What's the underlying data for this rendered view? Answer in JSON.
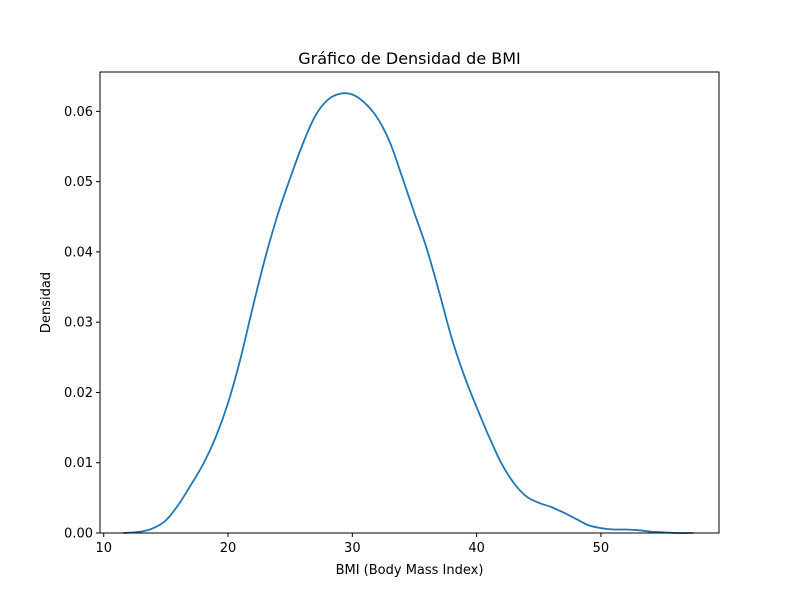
{
  "chart_data": {
    "type": "line",
    "title": "Gráfico de Densidad de BMI",
    "xlabel": "BMI (Body Mass Index)",
    "ylabel": "Densidad",
    "xlim": [
      9.7,
      59.5
    ],
    "ylim": [
      0,
      0.0656
    ],
    "x_ticks": [
      10,
      20,
      30,
      40,
      50
    ],
    "y_ticks": [
      0.0,
      0.01,
      0.02,
      0.03,
      0.04,
      0.05,
      0.06
    ],
    "y_tick_labels": [
      "0.00",
      "0.01",
      "0.02",
      "0.03",
      "0.04",
      "0.05",
      "0.06"
    ],
    "grid": false,
    "line_color": "#1f77b4",
    "series": [
      {
        "x": [
          11.6,
          13.0,
          14.0,
          15.0,
          16.0,
          17.0,
          18.0,
          19.0,
          20.0,
          21.0,
          22.0,
          23.0,
          24.0,
          25.0,
          26.0,
          27.0,
          28.0,
          29.0,
          30.0,
          31.0,
          32.0,
          33.0,
          34.0,
          35.0,
          36.0,
          37.0,
          38.0,
          39.0,
          40.0,
          41.0,
          42.0,
          43.0,
          44.0,
          45.0,
          46.0,
          47.0,
          48.0,
          49.0,
          50.0,
          51.0,
          52.0,
          53.0,
          54.0,
          55.0,
          56.0,
          57.4
        ],
        "y": [
          0.0,
          0.0002,
          0.0007,
          0.0018,
          0.004,
          0.0068,
          0.0098,
          0.0136,
          0.0185,
          0.0248,
          0.0322,
          0.0392,
          0.0453,
          0.0505,
          0.0553,
          0.0593,
          0.0616,
          0.0625,
          0.0624,
          0.0612,
          0.0591,
          0.0557,
          0.0507,
          0.0455,
          0.0404,
          0.0342,
          0.0277,
          0.0224,
          0.0179,
          0.0137,
          0.0099,
          0.0071,
          0.0052,
          0.0043,
          0.0037,
          0.0029,
          0.002,
          0.0011,
          0.0007,
          0.0005,
          0.0005,
          0.0004,
          0.0002,
          0.0001,
          0.0,
          0.0
        ]
      }
    ]
  }
}
